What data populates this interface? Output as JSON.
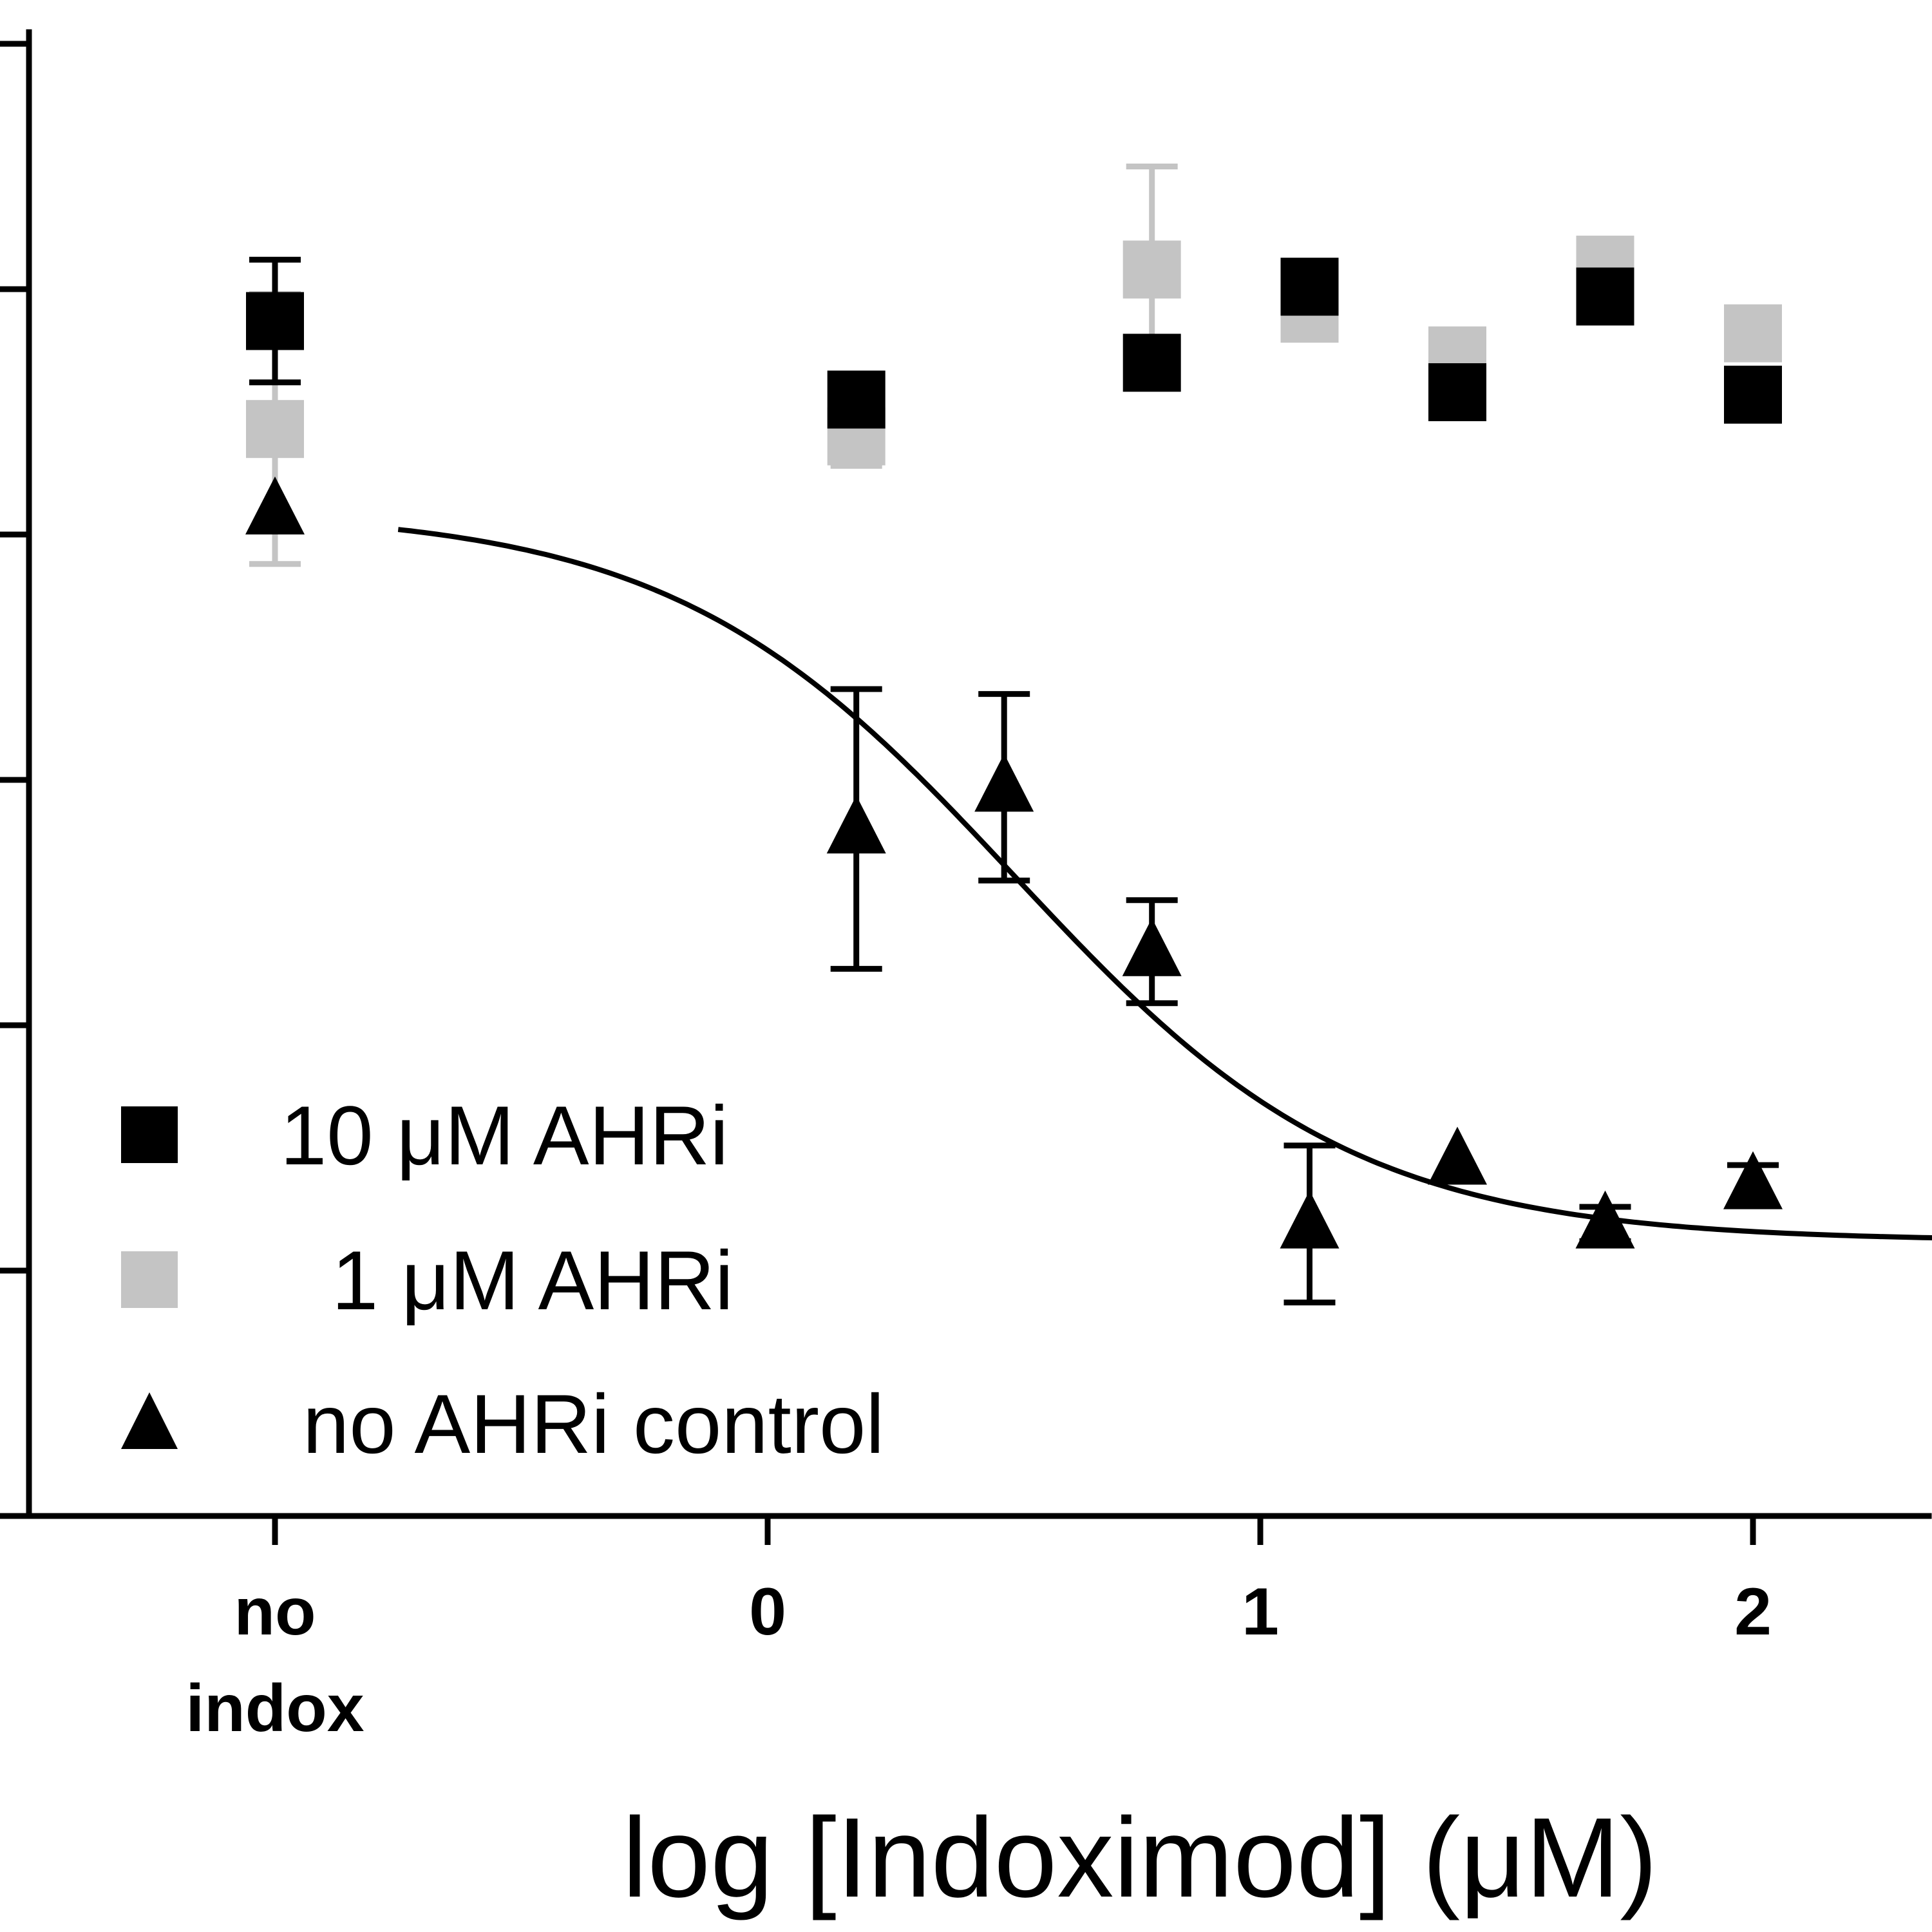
{
  "chart_data": {
    "type": "scatter",
    "xlabel": "log [Indoximod] (μM)",
    "ylabel": "",
    "x_ticks": [
      {
        "value": -1,
        "label_lines": [
          "no",
          "indox"
        ]
      },
      {
        "value": 0,
        "label_lines": [
          "0"
        ]
      },
      {
        "value": 1,
        "label_lines": [
          "1"
        ]
      },
      {
        "value": 2,
        "label_lines": [
          "2"
        ]
      }
    ],
    "xlim": [
      -2.5,
      2.37
    ],
    "ylim": [
      0,
      6
    ],
    "y_ticks": [
      0,
      1,
      2,
      3,
      4,
      5,
      6
    ],
    "y_tick_labels_visible": false,
    "grid": false,
    "legend_position": "bottom-left",
    "series": [
      {
        "name": "10 μM AHRi",
        "marker": "square",
        "color": "#000000",
        "points": [
          {
            "x": -1,
            "y": 4.87,
            "err": 0.25
          },
          {
            "x": 0.18,
            "y": 4.55,
            "err": 0
          },
          {
            "x": 0.78,
            "y": 4.7,
            "err": 0
          },
          {
            "x": 1.1,
            "y": 5.01,
            "err": 0
          },
          {
            "x": 1.4,
            "y": 4.58,
            "err": 0
          },
          {
            "x": 1.7,
            "y": 4.97,
            "err": 0
          },
          {
            "x": 2.0,
            "y": 4.57,
            "err": 0
          }
        ]
      },
      {
        "name": "1 μM AHRi",
        "marker": "square",
        "color": "#c4c4c4",
        "points": [
          {
            "x": -1,
            "y": 4.43,
            "err": 0.55
          },
          {
            "x": 0.18,
            "y": 4.4,
            "err": 0.12
          },
          {
            "x": 0.78,
            "y": 5.08,
            "err": 0.42
          },
          {
            "x": 1.1,
            "y": 4.9,
            "err": 0
          },
          {
            "x": 1.4,
            "y": 4.73,
            "err": 0
          },
          {
            "x": 1.7,
            "y": 5.1,
            "err": 0
          },
          {
            "x": 2.0,
            "y": 4.82,
            "err": 0
          }
        ]
      },
      {
        "name": "no AHRi control",
        "marker": "triangle",
        "color": "#000000",
        "points": [
          {
            "x": -1,
            "y": 4.1,
            "err": 0
          },
          {
            "x": 0.18,
            "y": 2.8,
            "err": 0.57
          },
          {
            "x": 0.48,
            "y": 2.97,
            "err": 0.38
          },
          {
            "x": 0.78,
            "y": 2.3,
            "err": 0.21
          },
          {
            "x": 1.1,
            "y": 1.19,
            "err": 0.32
          },
          {
            "x": 1.4,
            "y": 1.45,
            "err": 0
          },
          {
            "x": 1.7,
            "y": 1.19,
            "err": 0.07
          },
          {
            "x": 2.0,
            "y": 1.35,
            "err": 0.08
          }
        ]
      }
    ],
    "fit": {
      "series": "no AHRi control",
      "model": "sigmoidal dose-response",
      "x_start": -0.75,
      "bottom": 1.12,
      "top": 4.1,
      "logIC50": 0.5,
      "hill_slope": -1.25
    }
  }
}
